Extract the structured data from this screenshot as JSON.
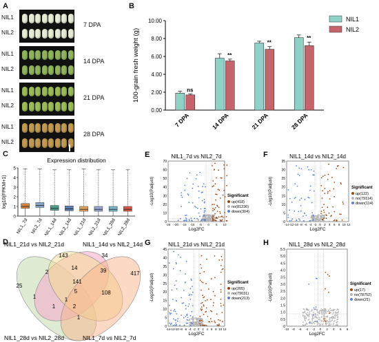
{
  "panelA": {
    "label": "A",
    "rows": [
      {
        "nil1": "NIL1",
        "nil2": "NIL2",
        "stage": "7 DPA",
        "color": "#e6ecd4"
      },
      {
        "nil1": "NIL1",
        "nil2": "NIL2",
        "stage": "14 DPA",
        "color": "#8fb45a"
      },
      {
        "nil1": "NIL1",
        "nil2": "NIL2",
        "stage": "21 DPA",
        "color": "#9abb55"
      },
      {
        "nil1": "NIL1",
        "nil2": "NIL2",
        "stage": "28 DPA",
        "color": "#c09a4e"
      }
    ]
  },
  "panelB": {
    "label": "B",
    "chart_data": {
      "type": "bar",
      "ylabel": "100-grain fresh weight (g)",
      "categories": [
        "7 DPA",
        "14 DPA",
        "21 DPA",
        "28 DPA"
      ],
      "ylim": [
        0,
        10
      ],
      "yticks": [
        "0.00",
        "2.00",
        "4.00",
        "6.00",
        "8.00",
        "10.00"
      ],
      "series": [
        {
          "name": "NIL1",
          "color": "#8ed1c6",
          "values": [
            1.9,
            5.8,
            7.5,
            8.1
          ],
          "errors": [
            0.2,
            0.5,
            0.2,
            0.3
          ]
        },
        {
          "name": "NIL2",
          "color": "#c6646c",
          "values": [
            1.7,
            5.5,
            6.8,
            7.2
          ],
          "errors": [
            0.1,
            0.2,
            0.3,
            0.4
          ]
        }
      ],
      "significance": [
        "ns",
        "**",
        "**",
        "**"
      ]
    }
  },
  "panelC": {
    "label": "C",
    "chart_data": {
      "type": "box",
      "title": "Expression distribution",
      "ylabel": "log10(FPKM+1)",
      "yticks": [
        "0",
        "1",
        "2",
        "3",
        "4",
        "5"
      ],
      "ylim": [
        0,
        5
      ],
      "categories": [
        "NIL1_7d",
        "NIL2_7d",
        "NIL1_14d",
        "NIL2_14d",
        "NIL1_21d",
        "NIL2_21d",
        "NIL1_28d",
        "NIL2_28d"
      ],
      "colors": [
        "#d9843a",
        "#8aa6c8",
        "#4f9e90",
        "#5b7fb0",
        "#e0a25a",
        "#9aa8d8",
        "#79b8c9",
        "#d9584a"
      ],
      "boxes": [
        {
          "q1": 0.8,
          "median": 1.0,
          "q3": 1.3,
          "max": 4.9
        },
        {
          "q1": 0.9,
          "median": 1.1,
          "q3": 1.4,
          "max": 4.9
        },
        {
          "q1": 0.6,
          "median": 0.8,
          "q3": 1.1,
          "max": 4.8
        },
        {
          "q1": 0.55,
          "median": 0.75,
          "q3": 1.05,
          "max": 4.8
        },
        {
          "q1": 0.5,
          "median": 0.7,
          "q3": 1.0,
          "max": 4.9
        },
        {
          "q1": 0.5,
          "median": 0.7,
          "q3": 1.0,
          "max": 4.8
        },
        {
          "q1": 0.5,
          "median": 0.7,
          "q3": 1.0,
          "max": 4.8
        },
        {
          "q1": 0.5,
          "median": 0.7,
          "q3": 1.0,
          "max": 4.8
        }
      ]
    }
  },
  "panelD": {
    "label": "D",
    "chart_data": {
      "type": "venn",
      "sets": [
        {
          "name": "NIL1_21d vs NIL2_21d",
          "color": "#c6dbb1"
        },
        {
          "name": "NIL1_14d vs NIL2_14d",
          "color": "#f4a8c8"
        },
        {
          "name": "NIL1_28d vs NIL2_28d",
          "color": "#f6dd8e"
        },
        {
          "name": "NIL1_7d vs NIL2_7d",
          "color": "#f8b48a"
        }
      ],
      "counts": [
        "25",
        "143",
        "34",
        "417",
        "2",
        "14",
        "39",
        "141",
        "1",
        "5",
        "108",
        "1",
        "2",
        "1",
        "1"
      ]
    }
  },
  "volcanoes": [
    {
      "label": "E",
      "title": "NIL1_7d vs NIL2_7d",
      "xlabel": "Log2FC",
      "ylabel": "-Log10(Padjust)",
      "xticks": [
        "-25",
        "-20",
        "-15",
        "-10",
        "-5",
        "0",
        "5",
        "10"
      ],
      "yticks": [
        "0",
        "10",
        "20",
        "30",
        "40",
        "50",
        "60",
        "70"
      ],
      "legend_title": "Significant",
      "up": "up(418)",
      "no": "no(81236)",
      "down": "down(304)"
    },
    {
      "label": "F",
      "title": "NIL1_14d vs NIL2_14d",
      "xlabel": "Log2FC",
      "ylabel": "-Log10(Padjust)",
      "xticks": [
        "-14",
        "-12",
        "-10",
        "-8",
        "-6",
        "-4",
        "-2",
        "0",
        "2",
        "4",
        "6",
        "8",
        "10",
        "12"
      ],
      "yticks": [
        "0",
        "5",
        "10",
        "15",
        "20",
        "25",
        "30",
        "35"
      ],
      "legend_title": "Significant",
      "up": "up(122)",
      "no": "no(79114)",
      "down": "down(114)"
    },
    {
      "label": "G",
      "title": "NIL1_21d vs NIL2_21d",
      "xlabel": "Log2FC",
      "ylabel": "-Log10(Padjust)",
      "xticks": [
        "-14",
        "-12",
        "-10",
        "-8",
        "-6",
        "-4",
        "-2",
        "0",
        "2",
        "4",
        "6",
        "8",
        "10",
        "12"
      ],
      "yticks": [
        "0",
        "5",
        "10",
        "15",
        "20",
        "25",
        "30",
        "35",
        "40",
        "45"
      ],
      "legend_title": "Significant",
      "up": "up(205)",
      "no": "no(79031)",
      "down": "down(213)"
    },
    {
      "label": "H",
      "title": "NIL1_28d vs NIL2_28d",
      "xlabel": "Log2FC",
      "ylabel": "-Log10(Padjust)",
      "xticks": [
        "-10",
        "-8",
        "-6",
        "-4",
        "-2",
        "0",
        "2",
        "4",
        "6",
        "8"
      ],
      "yticks": [
        "0",
        "0.5",
        "1.0",
        "1.5",
        "2.0",
        "2.5",
        "3.0",
        "3.5",
        "4.0",
        "4.5",
        "5.0",
        "5.5"
      ],
      "legend_title": "Significant",
      "up": "up(17)",
      "no": "no(78752)",
      "down": "down(21)"
    }
  ],
  "colors": {
    "up": "#9a4a12",
    "no": "#b4b4b4",
    "down": "#5b7fd6"
  }
}
